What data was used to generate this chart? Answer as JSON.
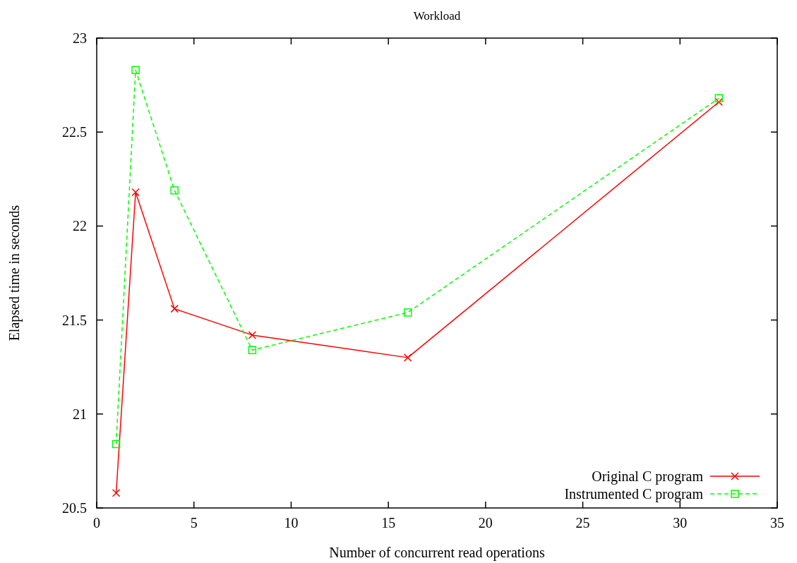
{
  "chart_data": {
    "type": "line",
    "title": "Workload",
    "xlabel": "Number of concurrent read operations",
    "ylabel": "Elapsed time in seconds",
    "x": [
      1,
      2,
      4,
      8,
      16,
      32
    ],
    "series": [
      {
        "name": "Original C program",
        "color": "#ff0000",
        "marker": "cross",
        "line_style": "solid",
        "values": [
          20.58,
          22.18,
          21.56,
          21.42,
          21.3,
          22.66
        ]
      },
      {
        "name": "Instrumented C program",
        "color": "#00ff00",
        "marker": "square",
        "line_style": "dashed",
        "values": [
          20.84,
          22.83,
          22.19,
          21.34,
          21.54,
          22.68
        ]
      }
    ],
    "xlim": [
      0,
      35
    ],
    "xticks": [
      0,
      5,
      10,
      15,
      20,
      25,
      30,
      35
    ],
    "ylim": [
      20.5,
      23
    ],
    "yticks": [
      20.5,
      21,
      21.5,
      22,
      22.5,
      23
    ],
    "grid": false,
    "legend": "bottom right"
  }
}
